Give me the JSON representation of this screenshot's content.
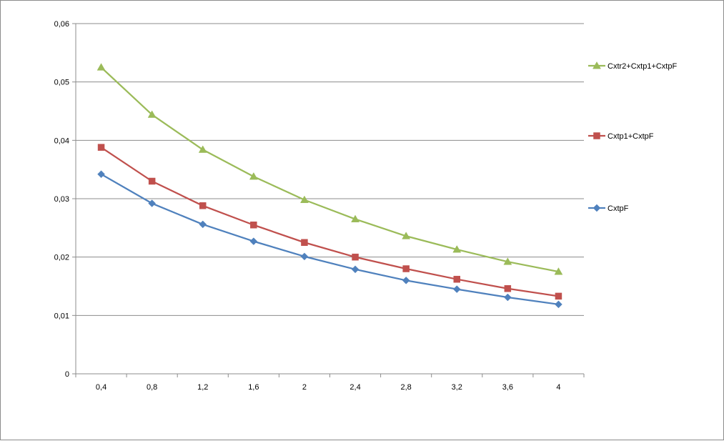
{
  "chart_data": {
    "type": "line",
    "title": "",
    "xlabel": "",
    "ylabel": "",
    "categories": [
      "0,4",
      "0,8",
      "1,2",
      "1,6",
      "2",
      "2,4",
      "2,8",
      "3,2",
      "3,6",
      "4"
    ],
    "y_ticks": [
      "0",
      "0,01",
      "0,02",
      "0,03",
      "0,04",
      "0,05",
      "0,06"
    ],
    "ylim": [
      0,
      0.06
    ],
    "y_tick_step": 0.01,
    "grid": true,
    "legend_position": "right",
    "series": [
      {
        "name": "Cxtr2+Cxtp1+CxtpF",
        "color": "#9bbb59",
        "marker": "triangle",
        "values": [
          0.0525,
          0.0444,
          0.0384,
          0.0338,
          0.0298,
          0.0265,
          0.0236,
          0.0213,
          0.0192,
          0.0175
        ]
      },
      {
        "name": "Cxtp1+CxtpF",
        "color": "#c0504d",
        "marker": "square",
        "values": [
          0.0388,
          0.033,
          0.0288,
          0.0255,
          0.0225,
          0.02,
          0.018,
          0.0162,
          0.0146,
          0.0133
        ]
      },
      {
        "name": "CxtpF",
        "color": "#4f81bd",
        "marker": "diamond",
        "values": [
          0.0342,
          0.0292,
          0.0256,
          0.0227,
          0.0201,
          0.0179,
          0.016,
          0.0145,
          0.0131,
          0.0119
        ]
      }
    ]
  }
}
